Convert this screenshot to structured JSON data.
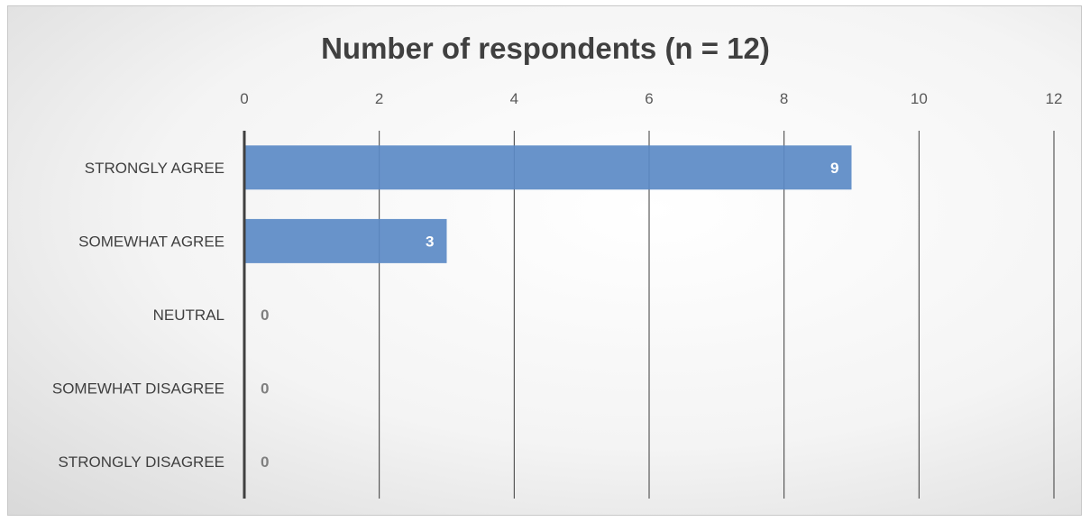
{
  "chart_data": {
    "type": "bar",
    "orientation": "horizontal",
    "title": "Number of respondents (n = 12)",
    "categories": [
      "STRONGLY AGREE",
      "SOMEWHAT AGREE",
      "NEUTRAL",
      "SOMEWHAT DISAGREE",
      "STRONGLY DISAGREE"
    ],
    "values": [
      9,
      3,
      0,
      0,
      0
    ],
    "xlim": [
      0,
      12
    ],
    "xticks": [
      "0",
      "2",
      "4",
      "6",
      "8",
      "10",
      "12"
    ],
    "axis_position": "top",
    "grid": true,
    "legend": false,
    "bar_color": "#5b8ac6",
    "label_color_inside": "#ffffff",
    "label_color_outside": "#7f7f7f"
  }
}
